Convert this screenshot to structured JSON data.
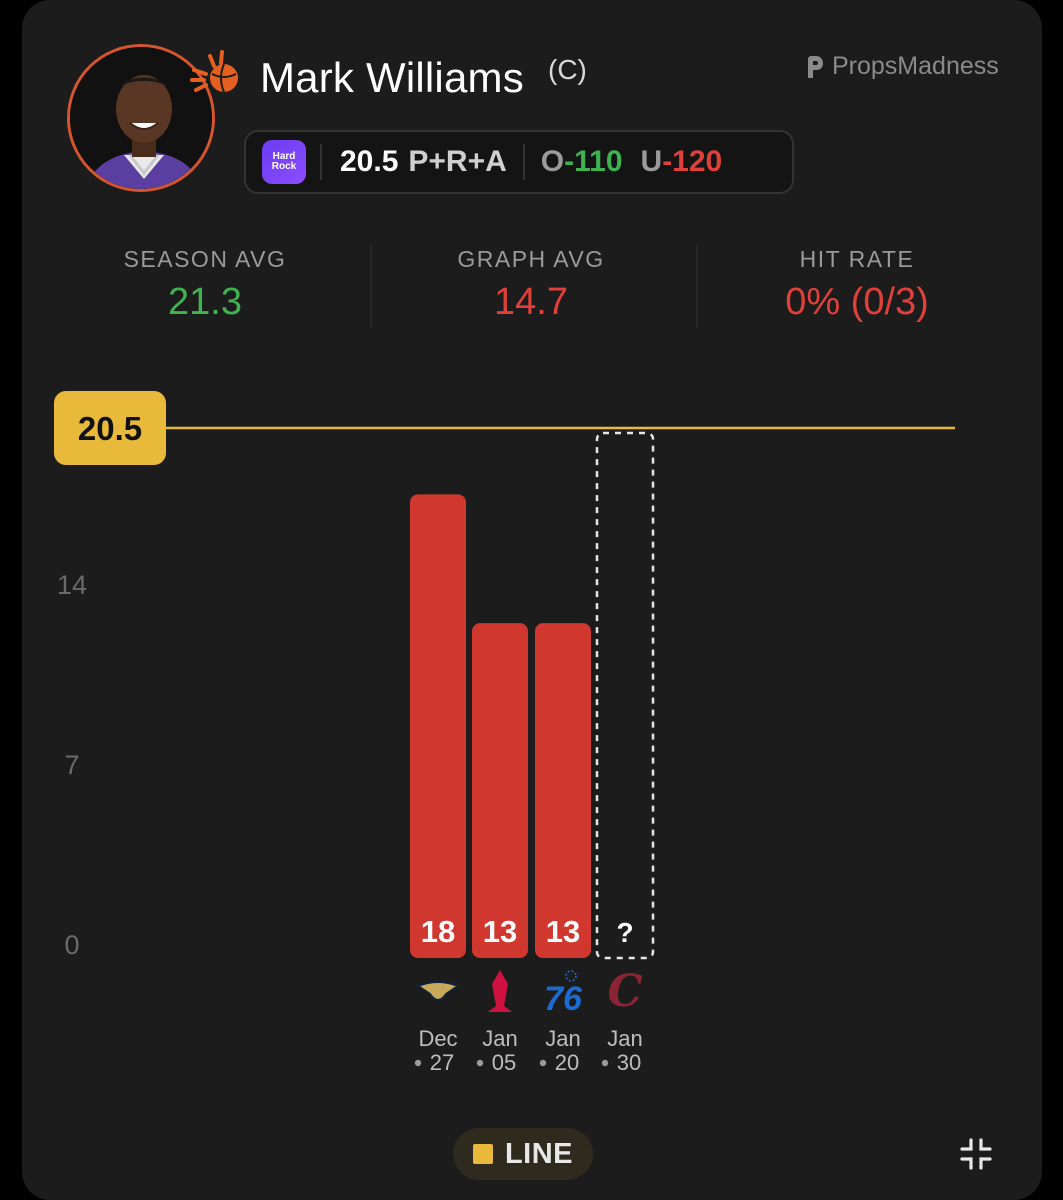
{
  "player": {
    "name": "Mark Williams",
    "position": "(C)",
    "team_logo": "phoenix-suns-logo"
  },
  "brand": {
    "name": "PropsMadness"
  },
  "prop": {
    "sportsbook": "Hard Rock Bet",
    "sportsbook_logo_text": "Hard Rock",
    "line": "20.5",
    "stat": "P+R+A",
    "over_label": "O",
    "over_odds": "-110",
    "under_label": "U",
    "under_odds": "-120"
  },
  "stats": {
    "season_avg": {
      "label": "SEASON AVG",
      "value": "21.3",
      "color": "#3fb34f"
    },
    "graph_avg": {
      "label": "GRAPH AVG",
      "value": "14.7",
      "color": "#e0403a"
    },
    "hit_rate": {
      "label": "HIT RATE",
      "value": "0% (0/3)",
      "color": "#e0403a"
    }
  },
  "chart_data": {
    "type": "bar",
    "yticks": [
      "0",
      "7",
      "14"
    ],
    "ylim": [
      0,
      21
    ],
    "line_value": 20.5,
    "line_label": "20.5",
    "line_color": "#e8b93a",
    "bar_color": "#d0382f",
    "games": [
      {
        "month": "Dec",
        "day": "27",
        "value": 18,
        "label": "18",
        "opponent": "new-orleans-pelicans-logo"
      },
      {
        "month": "Jan",
        "day": "05",
        "value": 13,
        "label": "13",
        "opponent": "houston-rockets-logo"
      },
      {
        "month": "Jan",
        "day": "20",
        "value": 13,
        "label": "13",
        "opponent": "philadelphia-76ers-logo"
      },
      {
        "month": "Jan",
        "day": "30",
        "value": null,
        "label": "?",
        "opponent": "cleveland-cavaliers-logo"
      }
    ]
  },
  "controls": {
    "line_toggle": "LINE",
    "collapse_icon": "collapse-icon"
  }
}
